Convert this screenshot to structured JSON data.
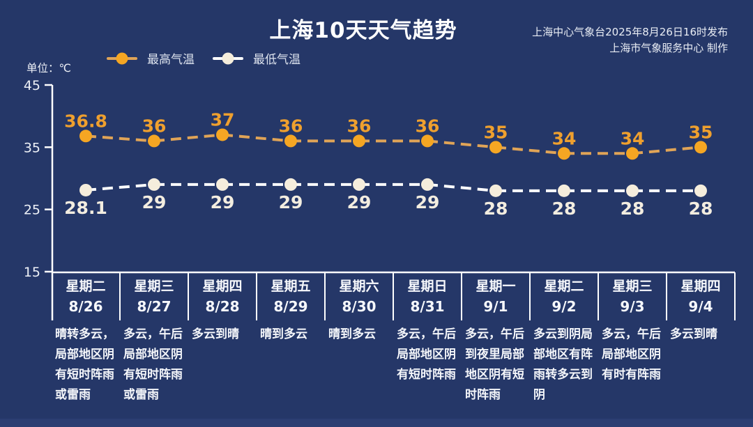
{
  "page": {
    "bg_color": "#253768",
    "bottom_strip_color": "#2c3e72"
  },
  "header": {
    "title": "上海10天天气趋势",
    "source_line1": "上海中心气象台2025年8月26日16时发布",
    "source_line2": "上海市气象服务中心 制作"
  },
  "unit_label": "单位：℃",
  "legend": {
    "high_label": "最高气温",
    "low_label": "最低气温"
  },
  "chart_data": {
    "type": "line",
    "title": "上海10天天气趋势",
    "ylabel": "单位：℃",
    "ylim": [
      15,
      45
    ],
    "yticks": [
      45,
      35,
      25,
      15
    ],
    "grid": false,
    "legend_position": "top",
    "categories": [
      "8/26",
      "8/27",
      "8/28",
      "8/29",
      "8/30",
      "8/31",
      "9/1",
      "9/2",
      "9/3",
      "9/4"
    ],
    "series": [
      {
        "name": "最高气温",
        "values": [
          36.8,
          36,
          37,
          36,
          36,
          36,
          35,
          34,
          34,
          35
        ],
        "marker_color": "#f5a623",
        "dash_color": "#e0a457",
        "label_color": "#efa02e"
      },
      {
        "name": "最低气温",
        "values": [
          28.1,
          29,
          29,
          29,
          29,
          29,
          28,
          28,
          28,
          28
        ],
        "marker_color": "#f5eddc",
        "dash_color": "#ffffff",
        "label_color": "#f3ede0"
      }
    ],
    "days": [
      {
        "weekday": "星期二",
        "date": "8/26",
        "desc": "晴转多云，局部地区阴有短时阵雨或雷雨"
      },
      {
        "weekday": "星期三",
        "date": "8/27",
        "desc": "多云，午后局部地区阴有短时阵雨或雷雨"
      },
      {
        "weekday": "星期四",
        "date": "8/28",
        "desc": "多云到晴"
      },
      {
        "weekday": "星期五",
        "date": "8/29",
        "desc": "晴到多云"
      },
      {
        "weekday": "星期六",
        "date": "8/30",
        "desc": "晴到多云"
      },
      {
        "weekday": "星期日",
        "date": "8/31",
        "desc": "多云，午后局部地区阴有短时阵雨"
      },
      {
        "weekday": "星期一",
        "date": "9/1",
        "desc": "多云，午后到夜里局部地区阴有短时阵雨"
      },
      {
        "weekday": "星期二",
        "date": "9/2",
        "desc": "多云到阴局部地区有阵雨转多云到阴"
      },
      {
        "weekday": "星期三",
        "date": "9/3",
        "desc": "多云，午后局部地区阴有时有阵雨"
      },
      {
        "weekday": "星期四",
        "date": "9/4",
        "desc": "多云到晴"
      }
    ]
  }
}
